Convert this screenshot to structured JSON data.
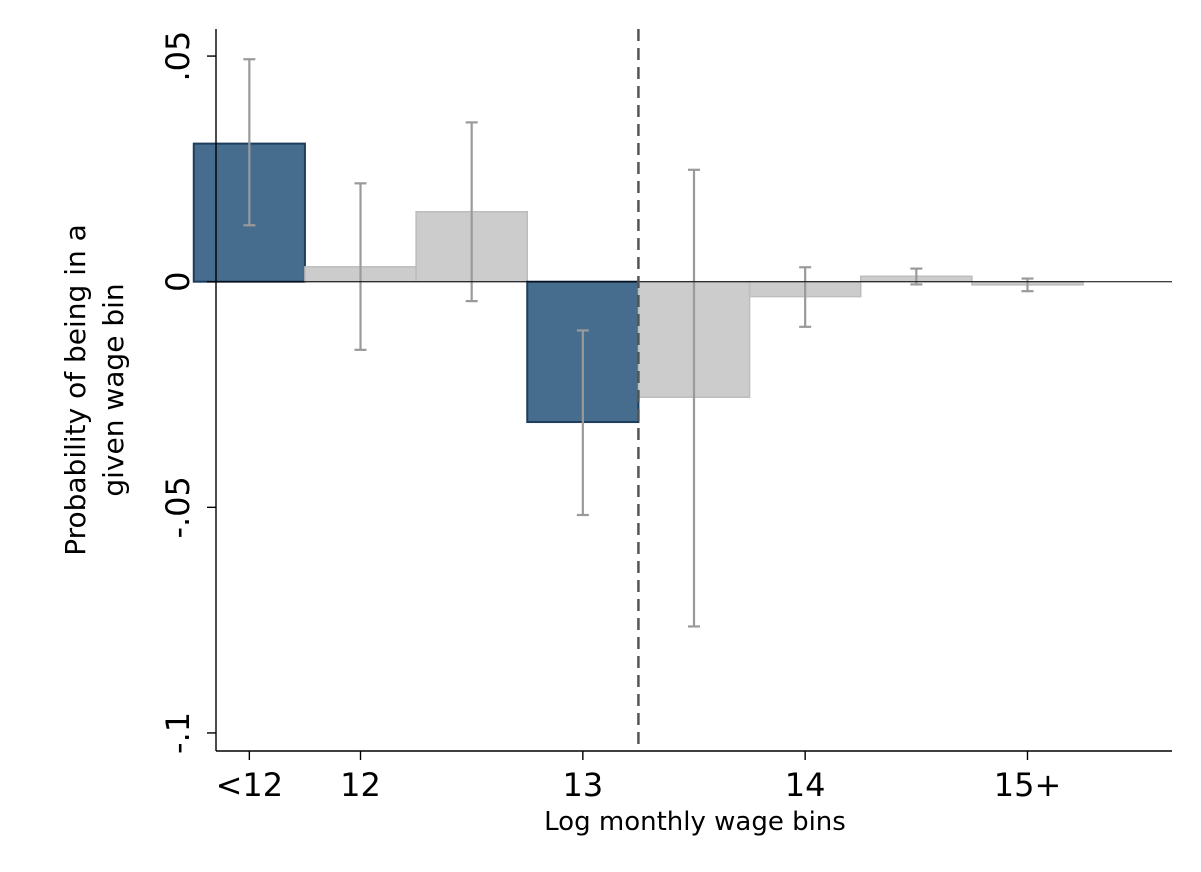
{
  "chart_data": {
    "type": "bar",
    "xlabel": "Log monthly wage bins",
    "ylabel_lines": [
      "Probability of being in a",
      "given wage bin"
    ],
    "ylim": [
      -0.104,
      0.056
    ],
    "xlim": [
      11.35,
      15.65
    ],
    "y_ticks": [
      {
        "value": 0.05,
        "label": ".05"
      },
      {
        "value": 0,
        "label": "0"
      },
      {
        "value": -0.05,
        "label": "-.05"
      },
      {
        "value": -0.1,
        "label": "-.1"
      }
    ],
    "x_ticks": [
      {
        "value": 11.5,
        "label": "<12"
      },
      {
        "value": 12,
        "label": "12"
      },
      {
        "value": 13,
        "label": "13"
      },
      {
        "value": 14,
        "label": "14"
      },
      {
        "value": 15,
        "label": "15+"
      }
    ],
    "bin_width": 0.5,
    "threshold_x": 13.25,
    "bars": [
      {
        "x": 11.5,
        "value": 0.0306,
        "ci_low": 0.0125,
        "ci_high": 0.0493,
        "highlight": true
      },
      {
        "x": 12.0,
        "value": 0.0033,
        "ci_low": -0.0151,
        "ci_high": 0.0218,
        "highlight": false
      },
      {
        "x": 12.5,
        "value": 0.0155,
        "ci_low": -0.0043,
        "ci_high": 0.0353,
        "highlight": false
      },
      {
        "x": 13.0,
        "value": -0.0311,
        "ci_low": -0.0517,
        "ci_high": -0.0108,
        "highlight": true
      },
      {
        "x": 13.5,
        "value": -0.0256,
        "ci_low": -0.0764,
        "ci_high": 0.0248,
        "highlight": false
      },
      {
        "x": 14.0,
        "value": -0.0033,
        "ci_low": -0.01,
        "ci_high": 0.0032,
        "highlight": false
      },
      {
        "x": 14.5,
        "value": 0.0012,
        "ci_low": -0.0006,
        "ci_high": 0.0029,
        "highlight": false
      },
      {
        "x": 15.0,
        "value": -0.0007,
        "ci_low": -0.0021,
        "ci_high": 0.0007,
        "highlight": false
      }
    ],
    "colors": {
      "highlight_fill": "#476d8e",
      "highlight_stroke": "#1e3d5c",
      "other_fill": "#cccccc",
      "other_stroke": "#bdbdbd",
      "errorbar": "#9a9a9a",
      "threshold_line": "#555555"
    },
    "grid": false,
    "legend": "none"
  }
}
